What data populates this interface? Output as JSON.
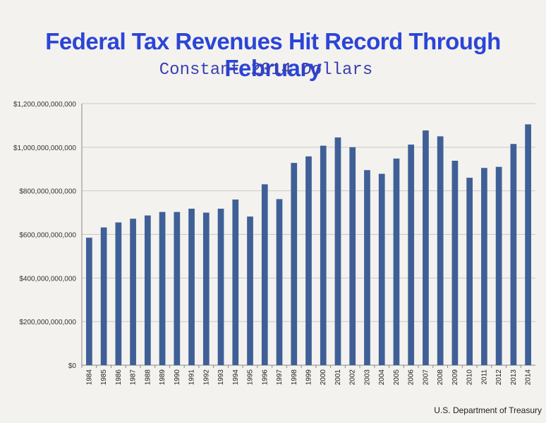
{
  "chart_data": {
    "type": "bar",
    "title": "Federal Tax Revenues Hit Record Through February",
    "subtitle": "Constant 2014 Dollars",
    "xlabel": "",
    "ylabel": "",
    "ylim": [
      0,
      1200000000000
    ],
    "yticks": [
      0,
      200000000000,
      400000000000,
      600000000000,
      800000000000,
      1000000000000,
      1200000000000
    ],
    "ytick_labels": [
      "$0",
      "$200,000,000,000",
      "$400,000,000,000",
      "$600,000,000,000",
      "$800,000,000,000",
      "$1,000,000,000,000",
      "$1,200,000,000,000"
    ],
    "categories": [
      "1984",
      "1985",
      "1986",
      "1987",
      "1988",
      "1989",
      "1990",
      "1991",
      "1992",
      "1993",
      "1994",
      "1995",
      "1996",
      "1997",
      "1998",
      "1999",
      "2000",
      "2001",
      "2002",
      "2003",
      "2004",
      "2005",
      "2006",
      "2007",
      "2008",
      "2009",
      "2010",
      "2011",
      "2012",
      "2013",
      "2014"
    ],
    "values": [
      585000000000,
      632000000000,
      655000000000,
      672000000000,
      687000000000,
      703000000000,
      703000000000,
      718000000000,
      700000000000,
      718000000000,
      760000000000,
      682000000000,
      830000000000,
      762000000000,
      928000000000,
      958000000000,
      1007000000000,
      1045000000000,
      1000000000000,
      895000000000,
      878000000000,
      948000000000,
      1012000000000,
      1077000000000,
      1050000000000,
      938000000000,
      860000000000,
      905000000000,
      910000000000,
      1015000000000,
      1105000000000
    ],
    "bar_color": "#3f5f97",
    "grid": true,
    "source": "U.S. Department of Treasury"
  }
}
